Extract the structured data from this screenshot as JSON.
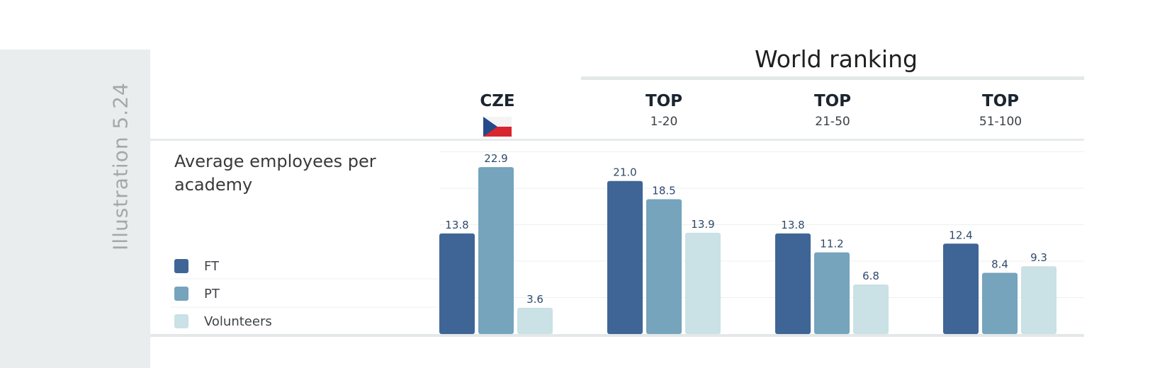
{
  "illustration_label": "Illustration 5.24",
  "world_ranking_title": "World ranking",
  "colors": {
    "FT": "#3f6596",
    "PT": "#75a4bc",
    "Volunteers": "#cae1e5"
  },
  "chart_data": {
    "type": "bar",
    "title": "Average employees per academy",
    "groups": [
      {
        "label": "CZE",
        "sublabel": ""
      },
      {
        "label": "TOP",
        "sublabel": "1-20"
      },
      {
        "label": "TOP",
        "sublabel": "21-50"
      },
      {
        "label": "TOP",
        "sublabel": "51-100"
      }
    ],
    "series": [
      {
        "name": "FT",
        "values": [
          "13.8",
          "21.0",
          "13.8",
          "12.4"
        ]
      },
      {
        "name": "PT",
        "values": [
          "22.9",
          "18.5",
          "11.2",
          "8.4"
        ]
      },
      {
        "name": "Volunteers",
        "values": [
          "3.6",
          "13.9",
          "6.8",
          "9.3"
        ]
      }
    ],
    "ylim": [
      0,
      25
    ],
    "grid": true,
    "legend": "left"
  }
}
